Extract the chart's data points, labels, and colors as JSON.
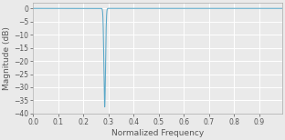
{
  "title": "",
  "xlabel": "Normalized Frequency",
  "ylabel": "Magnitude (dB)",
  "xlim": [
    0,
    0.99
  ],
  "ylim": [
    -40,
    2
  ],
  "yticks": [
    0,
    -5,
    -10,
    -15,
    -20,
    -25,
    -30,
    -35,
    -40
  ],
  "xticks": [
    0,
    0.1,
    0.2,
    0.3,
    0.4,
    0.5,
    0.6,
    0.7,
    0.8,
    0.9
  ],
  "notch_freq": 0.285,
  "notch_depth": -37.5,
  "notch_bw": 0.008,
  "line_color": "#5aa8c8",
  "bg_color": "#eaeaea",
  "plot_bg_color": "#eaeaea",
  "grid_color": "#ffffff",
  "tick_label_fontsize": 5.5,
  "axis_label_fontsize": 6.5,
  "tick_color": "#555555",
  "spine_color": "#aaaaaa"
}
